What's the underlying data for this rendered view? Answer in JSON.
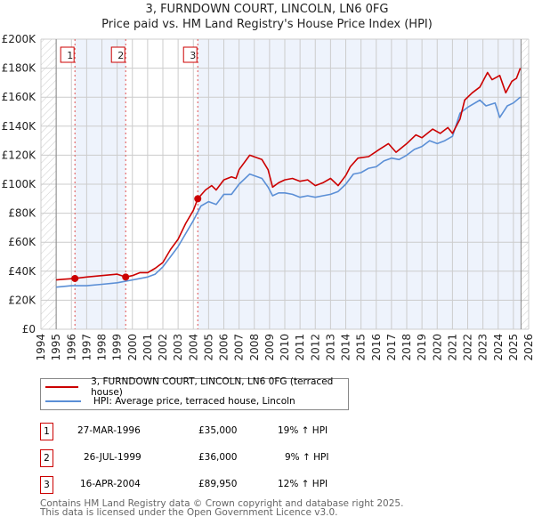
{
  "title_line1": "3, FURNDOWN COURT, LINCOLN, LN6 0FG",
  "title_line2": "Price paid vs. HM Land Registry's House Price Index (HPI)",
  "colors": {
    "property": "#cc0000",
    "hpi": "#5b8fd6",
    "shade": "#eef3fc",
    "grid": "#cccccc"
  },
  "chart_data": {
    "type": "line",
    "xlim": [
      1994,
      2026
    ],
    "ylim": [
      0,
      200000
    ],
    "yticks": [
      0,
      20000,
      40000,
      60000,
      80000,
      100000,
      120000,
      140000,
      160000,
      180000,
      200000
    ],
    "ytick_labels": [
      "£0",
      "£20K",
      "£40K",
      "£60K",
      "£80K",
      "£100K",
      "£120K",
      "£140K",
      "£160K",
      "£180K",
      "£200K"
    ],
    "xticks": [
      "1994",
      "1995",
      "1996",
      "1997",
      "1998",
      "1999",
      "2000",
      "2001",
      "2002",
      "2003",
      "2004",
      "2005",
      "2006",
      "2007",
      "2008",
      "2009",
      "2010",
      "2011",
      "2012",
      "2013",
      "2014",
      "2015",
      "2016",
      "2017",
      "2018",
      "2019",
      "2020",
      "2021",
      "2022",
      "2023",
      "2024",
      "2025",
      "2026"
    ],
    "data_range": [
      1995,
      2025.5
    ],
    "series": [
      {
        "name": "3, FURNDOWN COURT, LINCOLN, LN6 0FG (terraced house)",
        "color": "#cc0000",
        "x": [
          1995,
          1995.5,
          1996.23,
          1997,
          1998,
          1999,
          1999.56,
          2000,
          2000.5,
          2001,
          2001.5,
          2002,
          2002.5,
          2003,
          2003.5,
          2004,
          2004.29,
          2004.8,
          2005.2,
          2005.5,
          2006,
          2006.5,
          2006.8,
          2007,
          2007.7,
          2008.5,
          2008.9,
          2009.2,
          2009.6,
          2010,
          2010.5,
          2011,
          2011.5,
          2012,
          2012.5,
          2013,
          2013.5,
          2014,
          2014.3,
          2014.8,
          2015.5,
          2016.2,
          2016.8,
          2017.3,
          2018,
          2018.6,
          2019,
          2019.7,
          2020.2,
          2020.7,
          2021,
          2021.5,
          2021.8,
          2022.3,
          2022.8,
          2023.3,
          2023.6,
          2024.1,
          2024.5,
          2024.9,
          2025.2,
          2025.45
        ],
        "y": [
          34000,
          34500,
          35000,
          36000,
          37000,
          38000,
          36000,
          37000,
          39000,
          39000,
          42000,
          46000,
          55000,
          62000,
          73000,
          82000,
          89950,
          96000,
          99000,
          96000,
          103000,
          105000,
          104000,
          110000,
          120000,
          117000,
          110000,
          98000,
          101000,
          103000,
          104000,
          102000,
          103000,
          99000,
          101000,
          104000,
          99000,
          106000,
          112000,
          118000,
          119000,
          124000,
          128000,
          122000,
          128000,
          134000,
          132000,
          138000,
          135000,
          139000,
          135000,
          145000,
          158000,
          163000,
          167000,
          177000,
          172000,
          175000,
          163000,
          171000,
          173000,
          180000
        ]
      },
      {
        "name": "HPI: Average price, terraced house, Lincoln",
        "color": "#5b8fd6",
        "x": [
          1995,
          1996,
          1997,
          1998,
          1999,
          2000,
          2001,
          2001.5,
          2002,
          2002.5,
          2003,
          2003.5,
          2004,
          2004.5,
          2005,
          2005.5,
          2006,
          2006.5,
          2007,
          2007.7,
          2008.5,
          2008.9,
          2009.2,
          2009.6,
          2010,
          2010.5,
          2011,
          2011.5,
          2012,
          2012.5,
          2013,
          2013.5,
          2014,
          2014.5,
          2015,
          2015.5,
          2016,
          2016.5,
          2017,
          2017.5,
          2018,
          2018.5,
          2019,
          2019.5,
          2020,
          2020.5,
          2021,
          2021.5,
          2022,
          2022.8,
          2023.2,
          2023.8,
          2024.1,
          2024.6,
          2025,
          2025.45
        ],
        "y": [
          29000,
          30000,
          30000,
          31000,
          32000,
          34000,
          36000,
          38000,
          43000,
          50000,
          57000,
          66000,
          75000,
          85000,
          88000,
          86000,
          93000,
          93000,
          100000,
          107000,
          104000,
          98000,
          92000,
          94000,
          94000,
          93000,
          91000,
          92000,
          91000,
          92000,
          93000,
          95000,
          100000,
          107000,
          108000,
          111000,
          112000,
          116000,
          118000,
          117000,
          120000,
          124000,
          126000,
          130000,
          128000,
          130000,
          133000,
          149000,
          153000,
          158000,
          154000,
          156000,
          146000,
          154000,
          156000,
          160000
        ]
      }
    ],
    "sales": [
      {
        "label": "1",
        "x": 1996.23,
        "y": 35000
      },
      {
        "label": "2",
        "x": 1999.56,
        "y": 36000
      },
      {
        "label": "3",
        "x": 2004.29,
        "y": 89950
      }
    ]
  },
  "legend": {
    "property": "3, FURNDOWN COURT, LINCOLN, LN6 0FG (terraced house)",
    "hpi": "HPI: Average price, terraced house, Lincoln"
  },
  "transactions": [
    {
      "num": "1",
      "date": "27-MAR-1996",
      "price": "£35,000",
      "hpi": "19% ↑ HPI"
    },
    {
      "num": "2",
      "date": "26-JUL-1999",
      "price": "£36,000",
      "hpi": "9% ↑ HPI"
    },
    {
      "num": "3",
      "date": "16-APR-2004",
      "price": "£89,950",
      "hpi": "12% ↑ HPI"
    }
  ],
  "footer_line1": "Contains HM Land Registry data © Crown copyright and database right 2025.",
  "footer_line2": "This data is licensed under the Open Government Licence v3.0."
}
